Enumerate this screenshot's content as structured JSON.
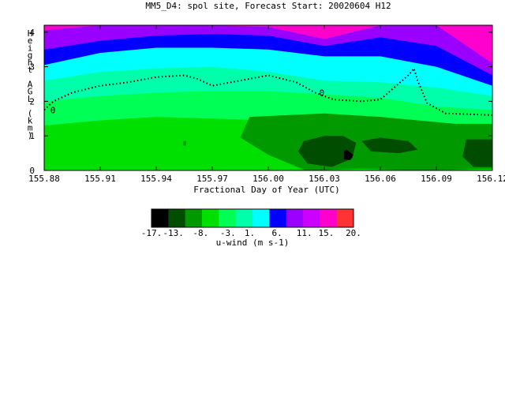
{
  "chart_data": {
    "type": "heatmap",
    "title": "MM5_D4: spol site,  Forecast Start: 20020604 H12",
    "xlabel": "Fractional Day of Year (UTC)",
    "ylabel": "Height AGL (km)",
    "xlim": [
      155.88,
      156.12
    ],
    "ylim": [
      0,
      4.2
    ],
    "x_ticks": [
      "155.88",
      "155.91",
      "155.94",
      "155.97",
      "156.00",
      "156.03",
      "156.06",
      "156.09",
      "156.12"
    ],
    "y_ticks": [
      "0",
      "1",
      "2",
      "3",
      "4"
    ],
    "colorbar": {
      "label": "u-wind (m s-1)",
      "levels": [
        -17,
        -14.5,
        -13,
        -10.5,
        -8,
        -5.5,
        -3,
        -0.5,
        1,
        3.5,
        6,
        8.5,
        11,
        13,
        15,
        17.5,
        20
      ],
      "tick_labels": [
        "-17.",
        "-13.",
        "-8.",
        "-3.",
        "1.",
        "6.",
        "11.",
        "15.",
        "20."
      ],
      "colors": [
        "#000000",
        "#004d00",
        "#009900",
        "#00e000",
        "#00ff55",
        "#00ffaa",
        "#00ffff",
        "#0000ff",
        "#9900ff",
        "#cc00ff",
        "#ff00cc",
        "#ff3333"
      ]
    },
    "contour_label": "0",
    "shading": {
      "x": [
        155.88,
        155.91,
        155.94,
        155.97,
        156.0,
        156.03,
        156.06,
        156.09,
        156.12
      ],
      "bands": [
        {
          "color": "#00e000",
          "level": -8,
          "top": [
            4.2,
            4.2,
            4.2,
            4.2,
            4.2,
            4.2,
            4.2,
            4.2,
            4.2
          ]
        },
        {
          "color": "#00ff55",
          "level": -5.5,
          "top": [
            4.2,
            4.2,
            4.2,
            4.2,
            4.2,
            4.2,
            4.2,
            4.2,
            4.2
          ]
        },
        {
          "color": "#00ffaa",
          "level": -3,
          "top": [
            4.2,
            4.2,
            4.2,
            4.2,
            4.2,
            4.2,
            4.2,
            4.2,
            4.2
          ]
        },
        {
          "color": "#00ffff",
          "level": 1,
          "top": [
            4.2,
            4.2,
            4.2,
            4.2,
            4.2,
            4.2,
            4.2,
            4.2,
            4.2
          ]
        },
        {
          "color": "#0000ff",
          "level": 6,
          "top": [
            4.2,
            4.2,
            4.2,
            4.2,
            4.2,
            4.2,
            4.2,
            4.2,
            4.2
          ]
        },
        {
          "color": "#9900ff",
          "level": 11,
          "top": [
            4.2,
            4.2,
            4.2,
            4.2,
            4.2,
            4.2,
            4.2,
            4.2,
            4.2
          ]
        },
        {
          "color": "#ff00cc",
          "level": 15,
          "top": [
            4.2,
            4.2,
            4.2,
            4.2,
            4.2,
            4.2,
            4.2,
            4.2,
            4.2
          ]
        }
      ],
      "band_bottoms": {
        "#00ff55": [
          1.3,
          1.45,
          1.55,
          1.5,
          1.45,
          1.3,
          1.2,
          1.05,
          1.05
        ],
        "#00ffaa": [
          2.0,
          2.15,
          2.25,
          2.3,
          2.3,
          2.2,
          2.1,
          1.85,
          1.75
        ],
        "#00ffff": [
          2.6,
          2.85,
          2.95,
          3.0,
          2.85,
          2.6,
          2.55,
          2.4,
          2.15
        ],
        "#0000ff": [
          3.05,
          3.4,
          3.55,
          3.55,
          3.5,
          3.3,
          3.3,
          3.0,
          2.45
        ],
        "#9900ff": [
          3.5,
          3.75,
          3.9,
          3.95,
          3.9,
          3.6,
          3.85,
          3.6,
          2.75
        ],
        "#ff00cc": [
          4.05,
          4.2,
          4.2,
          4.2,
          4.15,
          3.8,
          4.2,
          4.2,
          3.1
        ]
      }
    },
    "dark_regions": [
      {
        "color": "#009900",
        "x": [
          155.99,
          156.03,
          156.06,
          156.08,
          156.1,
          156.12,
          156.12,
          156.08,
          156.05,
          156.02,
          156.0,
          155.985
        ],
        "y": [
          1.55,
          1.65,
          1.55,
          1.45,
          1.35,
          1.35,
          0.05,
          0.0,
          0.05,
          0.0,
          0.45,
          0.95
        ]
      },
      {
        "color": "#004d00",
        "x": [
          156.019,
          156.03,
          156.04,
          156.047,
          156.045,
          156.034,
          156.021,
          156.016
        ],
        "y": [
          0.85,
          1.0,
          1.0,
          0.8,
          0.35,
          0.1,
          0.2,
          0.55
        ]
      },
      {
        "color": "#004d00",
        "x": [
          156.05,
          156.06,
          156.075,
          156.08,
          156.07,
          156.055
        ],
        "y": [
          0.85,
          0.95,
          0.85,
          0.6,
          0.5,
          0.55
        ]
      },
      {
        "color": "#004d00",
        "x": [
          156.106,
          156.12,
          156.12,
          156.11,
          156.104
        ],
        "y": [
          0.9,
          0.9,
          0.1,
          0.1,
          0.4
        ]
      },
      {
        "color": "#000000",
        "x": [
          156.0405,
          156.042,
          156.0455,
          156.044,
          156.0405
        ],
        "y": [
          0.55,
          0.6,
          0.45,
          0.3,
          0.32
        ]
      },
      {
        "color": "#009900",
        "x": [
          155.9545,
          155.9562,
          155.956,
          155.9545
        ],
        "y": [
          0.85,
          0.85,
          0.72,
          0.72
        ]
      }
    ],
    "zero_contour": {
      "x": [
        155.88,
        155.885,
        155.895,
        155.91,
        155.925,
        155.94,
        155.955,
        155.962,
        155.97,
        155.985,
        156.0,
        156.015,
        156.025,
        156.035,
        156.05,
        156.06,
        156.075,
        156.078,
        156.08,
        156.085,
        156.095,
        156.12
      ],
      "y": [
        1.75,
        2.0,
        2.25,
        2.45,
        2.55,
        2.7,
        2.75,
        2.65,
        2.45,
        2.6,
        2.75,
        2.55,
        2.25,
        2.05,
        2.0,
        2.05,
        2.75,
        2.95,
        2.6,
        1.95,
        1.65,
        1.6
      ]
    }
  }
}
